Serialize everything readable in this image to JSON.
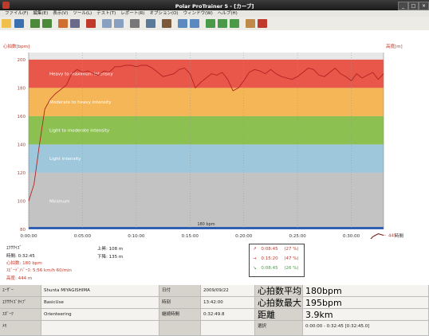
{
  "window": {
    "title": "Polar ProTrainer 5 - [カーブ]",
    "controls": [
      "_",
      "□",
      "×"
    ]
  },
  "menu": [
    "ファイル(F)",
    "編集(E)",
    "表示(V)",
    "ツール(L)",
    "テスト(T)",
    "レポート(R)",
    "オプション(O)",
    "ウィンドウ(W)",
    "ヘルプ(H)"
  ],
  "toolbar": {
    "buttons": [
      {
        "icon": "new-icon",
        "color": "#f0c04a"
      },
      {
        "icon": "save-icon",
        "color": "#3a6fb0"
      },
      {
        "icon": "calendar-icon",
        "color": "#4a8a3a"
      },
      {
        "icon": "calendar-add-icon",
        "color": "#4a8a3a"
      },
      {
        "icon": "list-icon",
        "color": "#d07030"
      },
      {
        "icon": "table-icon",
        "color": "#6a6a8a"
      },
      {
        "icon": "sport-icon",
        "color": "#c0392b"
      },
      {
        "icon": "chart-icon",
        "color": "#8aa0c0"
      },
      {
        "icon": "chart2-icon",
        "color": "#8aa0c0"
      },
      {
        "icon": "bars-icon",
        "color": "#777777"
      },
      {
        "icon": "tools-icon",
        "color": "#5a7a9a"
      },
      {
        "icon": "pen-icon",
        "color": "#7a5a3a"
      },
      {
        "icon": "diagram-icon",
        "color": "#5a8ac0"
      },
      {
        "icon": "diagram2-icon",
        "color": "#5a8ac0"
      },
      {
        "icon": "graph-icon",
        "color": "#4a9a4a"
      },
      {
        "icon": "graph2-icon",
        "color": "#4a9a4a"
      },
      {
        "icon": "graph3-icon",
        "color": "#4a9a4a"
      },
      {
        "icon": "report-icon",
        "color": "#c08a4a"
      },
      {
        "icon": "report2-icon",
        "color": "#c0392b"
      }
    ]
  },
  "chart_data": {
    "type": "line",
    "left_axis_title": "心拍数[bpm]",
    "right_axis_title": "高度[m]",
    "x_axis_title": "時間",
    "x_ticks": [
      "0:00:00",
      "0:05:00",
      "0:10:00",
      "0:15:00",
      "0:20:00",
      "0:25:00",
      "0:30:00"
    ],
    "xlim_min": [
      0,
      33
    ],
    "ylim_hr": [
      80,
      205
    ],
    "hr_ticks": [
      80,
      100,
      120,
      140,
      160,
      180,
      200
    ],
    "ylim_alt": [
      441,
      322
    ],
    "alt_ticks": [
      445,
      450,
      455,
      460,
      465,
      470,
      475,
      480,
      485,
      490,
      495,
      500,
      505,
      510,
      515,
      520
    ],
    "zones": [
      {
        "name": "Heavy to maximum intensity",
        "from": 180,
        "to": 200,
        "color": "#e8574a"
      },
      {
        "name": "Moderate to heavy intensity",
        "from": 160,
        "to": 180,
        "color": "#f5b657"
      },
      {
        "name": "Light to moderate intensity",
        "from": 140,
        "to": 160,
        "color": "#8cc152"
      },
      {
        "name": "Light intensity",
        "from": 120,
        "to": 140,
        "color": "#9fc7dc"
      },
      {
        "name": "Minimum",
        "from": 80,
        "to": 120,
        "color": "#c3c3c3"
      }
    ],
    "limit_label": "180 bpm",
    "limit_value": 180,
    "series": [
      {
        "color": "#b22222",
        "axis": "left",
        "points": [
          [
            0,
            100
          ],
          [
            0.5,
            112
          ],
          [
            1,
            140
          ],
          [
            1.5,
            165
          ],
          [
            2,
            172
          ],
          [
            2.5,
            176
          ],
          [
            3,
            179
          ],
          [
            3.5,
            182
          ],
          [
            4,
            190
          ],
          [
            4.5,
            193
          ],
          [
            5,
            191
          ],
          [
            5.5,
            192
          ],
          [
            6,
            190
          ],
          [
            6.5,
            189
          ],
          [
            7,
            192
          ],
          [
            7.5,
            191
          ],
          [
            8,
            195
          ],
          [
            8.5,
            195
          ],
          [
            9,
            196
          ],
          [
            9.5,
            196
          ],
          [
            10,
            195
          ],
          [
            10.5,
            196
          ],
          [
            11,
            196
          ],
          [
            11.5,
            194
          ],
          [
            12,
            191
          ],
          [
            12.5,
            188
          ],
          [
            13,
            189
          ],
          [
            13.5,
            190
          ],
          [
            14,
            193
          ],
          [
            14.5,
            194
          ],
          [
            15,
            190
          ],
          [
            15.5,
            180
          ],
          [
            16,
            184
          ],
          [
            16.5,
            187
          ],
          [
            17,
            190
          ],
          [
            17.5,
            189
          ],
          [
            18,
            191
          ],
          [
            18.5,
            186
          ],
          [
            19,
            178
          ],
          [
            19.5,
            180
          ],
          [
            20,
            185
          ],
          [
            20.5,
            191
          ],
          [
            21,
            193
          ],
          [
            21.5,
            192
          ],
          [
            22,
            190
          ],
          [
            22.5,
            193
          ],
          [
            23,
            190
          ],
          [
            23.5,
            188
          ],
          [
            24,
            187
          ],
          [
            24.5,
            186
          ],
          [
            25,
            188
          ],
          [
            25.5,
            191
          ],
          [
            26,
            194
          ],
          [
            26.5,
            193
          ],
          [
            27,
            189
          ],
          [
            27.5,
            188
          ],
          [
            28,
            191
          ],
          [
            28.5,
            194
          ],
          [
            29,
            190
          ],
          [
            29.5,
            188
          ],
          [
            30,
            185
          ],
          [
            30.5,
            190
          ],
          [
            31,
            187
          ],
          [
            31.5,
            189
          ],
          [
            32,
            191
          ],
          [
            32.5,
            186
          ],
          [
            33,
            190
          ]
        ]
      },
      {
        "color": "#7a1a1a",
        "axis": "right",
        "points": [
          [
            0,
            457
          ],
          [
            0.5,
            461
          ],
          [
            1,
            466
          ],
          [
            1.5,
            470
          ],
          [
            2,
            474
          ],
          [
            2.5,
            477
          ],
          [
            3,
            480
          ],
          [
            3.5,
            482
          ],
          [
            4,
            484
          ],
          [
            4.5,
            487
          ],
          [
            5,
            491
          ],
          [
            5.5,
            488
          ],
          [
            6,
            486
          ],
          [
            6.5,
            484
          ],
          [
            7,
            485
          ],
          [
            7.5,
            493
          ],
          [
            8,
            501
          ],
          [
            8.5,
            497
          ],
          [
            9,
            489
          ],
          [
            9.5,
            482
          ],
          [
            10,
            487
          ],
          [
            10.5,
            495
          ],
          [
            11,
            505
          ],
          [
            11.5,
            508
          ],
          [
            12,
            509
          ],
          [
            12.5,
            505
          ],
          [
            13,
            509
          ],
          [
            13.5,
            511
          ],
          [
            14,
            508
          ],
          [
            14.5,
            502
          ],
          [
            15,
            500
          ],
          [
            15.5,
            492
          ],
          [
            16,
            495
          ],
          [
            16.5,
            500
          ],
          [
            17,
            503
          ],
          [
            17.5,
            498
          ],
          [
            18,
            492
          ],
          [
            18.5,
            486
          ],
          [
            19,
            488
          ],
          [
            19.5,
            494
          ],
          [
            20,
            498
          ],
          [
            20.5,
            505
          ],
          [
            21,
            502
          ],
          [
            21.5,
            498
          ],
          [
            22,
            500
          ],
          [
            22.5,
            492
          ],
          [
            23,
            486
          ],
          [
            23.5,
            478
          ],
          [
            24,
            475
          ],
          [
            24.5,
            479
          ],
          [
            25,
            482
          ],
          [
            25.5,
            486
          ],
          [
            26,
            488
          ],
          [
            26.5,
            492
          ],
          [
            27,
            494
          ],
          [
            27.5,
            502
          ],
          [
            28,
            508
          ],
          [
            28.5,
            513
          ],
          [
            29,
            518
          ],
          [
            29.5,
            505
          ],
          [
            30,
            488
          ],
          [
            30.5,
            470
          ],
          [
            31,
            458
          ],
          [
            31.5,
            450
          ],
          [
            32,
            446
          ],
          [
            32.5,
            444
          ],
          [
            33,
            445
          ]
        ]
      }
    ]
  },
  "summary": {
    "exercise_label": "ｴｸｻｻｲｽﾞ",
    "duration": "時間: 0:32:45",
    "hr": "心拍数: 180 bpm",
    "pace": "ｽﾋﾟｰﾄﾞ/ﾍﾟｰｽ: 5:56 km/h 60/min",
    "altitude": "高度: 444 m",
    "ascent": "上昇: 108 m",
    "descent": "下降: 135 m"
  },
  "zone_summary": [
    {
      "arrow": "↗",
      "time": "0:08:45",
      "pct": "(27 %)",
      "color": "#c0392b"
    },
    {
      "arrow": "→",
      "time": "0:15:20",
      "pct": "(47 %)",
      "color": "#c0392b"
    },
    {
      "arrow": "↘",
      "time": "0:08:45",
      "pct": "(26 %)",
      "color": "#4a9a4a"
    }
  ],
  "details": {
    "row1": {
      "l1": "ﾕｰｻﾞｰ",
      "v1": "Shunta MIYAGISHIMA",
      "l2": "日付",
      "v2": "2009/09/22",
      "l3": "心拍数平均",
      "v3": "180bpm"
    },
    "row2": {
      "l1": "ｴｸｻｻｲｽﾞﾀｲﾌﾟ",
      "v1": "BasicUse",
      "l2": "時刻",
      "v2": "13:42:00",
      "l3": "心拍数最大",
      "v3": "195bpm"
    },
    "row3": {
      "l1": "ｽﾎﾟｰﾂ",
      "v1": "Orienteering",
      "l2": "継続時間",
      "v2": "0:32:49.8",
      "l3": "距離",
      "v3": "3.9km"
    },
    "row4": {
      "l1": "ﾒﾓ",
      "v1": "",
      "l2": "",
      "v2": "",
      "l3": "選択",
      "v3": "0:00:00 - 0:32:45 [0:32:45.0]"
    }
  }
}
